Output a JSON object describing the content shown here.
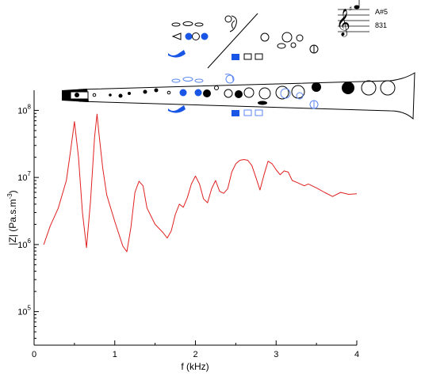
{
  "chart_data": {
    "type": "line",
    "title": "",
    "xlabel": "f (kHz)",
    "ylabel_prefix": "|Z| (Pa.s.m",
    "ylabel_exp": "-3",
    "ylabel_suffix": ")",
    "xlim": [
      0,
      4
    ],
    "ylim_log10": [
      4.5,
      8.3
    ],
    "y_scale": "log",
    "grid": false,
    "legend": "none",
    "x_ticks": [
      {
        "value": 0,
        "label": "0"
      },
      {
        "value": 1,
        "label": "1"
      },
      {
        "value": 2,
        "label": "2"
      },
      {
        "value": 3,
        "label": "3"
      },
      {
        "value": 4,
        "label": "4"
      }
    ],
    "y_ticks": [
      {
        "exp": 5,
        "base": "10",
        "sup": "5"
      },
      {
        "exp": 6,
        "base": "10",
        "sup": "6"
      },
      {
        "exp": 7,
        "base": "10",
        "sup": "7"
      },
      {
        "exp": 8,
        "base": "10",
        "sup": "8"
      }
    ],
    "series": [
      {
        "color": "#e02020",
        "x": [
          0.12,
          0.2,
          0.3,
          0.4,
          0.45,
          0.5,
          0.55,
          0.6,
          0.65,
          0.7,
          0.75,
          0.78,
          0.8,
          0.85,
          0.9,
          1.0,
          1.1,
          1.15,
          1.2,
          1.25,
          1.3,
          1.35,
          1.4,
          1.5,
          1.6,
          1.65,
          1.7,
          1.75,
          1.8,
          1.85,
          1.9,
          1.95,
          2.0,
          2.05,
          2.1,
          2.15,
          2.2,
          2.25,
          2.3,
          2.35,
          2.4,
          2.45,
          2.5,
          2.55,
          2.6,
          2.65,
          2.7,
          2.75,
          2.8,
          2.85,
          2.9,
          2.95,
          3.0,
          3.05,
          3.1,
          3.15,
          3.2,
          3.25,
          3.3,
          3.35,
          3.4,
          3.5,
          3.6,
          3.7,
          3.8,
          3.9,
          4.0
        ],
        "y": [
          1000000.0,
          1900000.0,
          3500000.0,
          9000000.0,
          24000000.0,
          68000000.0,
          20000000.0,
          3000000.0,
          900000.0,
          4500000.0,
          40000000.0,
          88000000.0,
          50000000.0,
          14000000.0,
          5500000.0,
          2200000.0,
          950000.0,
          780000.0,
          1800000.0,
          6000000.0,
          8800000.0,
          7500000.0,
          3500000.0,
          2000000.0,
          1500000.0,
          1250000.0,
          1600000.0,
          2800000.0,
          4000000.0,
          3600000.0,
          5000000.0,
          8000000.0,
          10500000.0,
          8000000.0,
          4800000.0,
          4200000.0,
          6800000.0,
          9000000.0,
          6200000.0,
          5800000.0,
          6800000.0,
          12000000.0,
          16000000.0,
          18000000.0,
          18500000.0,
          18000000.0,
          15000000.0,
          10000000.0,
          6500000.0,
          11000000.0,
          17500000.0,
          16000000.0,
          13000000.0,
          11000000.0,
          12500000.0,
          12000000.0,
          9000000.0,
          8500000.0,
          8000000.0,
          7500000.0,
          8000000.0,
          7000000.0,
          6000000.0,
          5200000.0,
          6000000.0,
          5600000.0,
          5700000.0
        ]
      }
    ]
  },
  "fingering": {
    "note_name": "A#5",
    "frequency": "831",
    "active_color": "#1a56e6",
    "outline_color": "#5a86f0"
  }
}
